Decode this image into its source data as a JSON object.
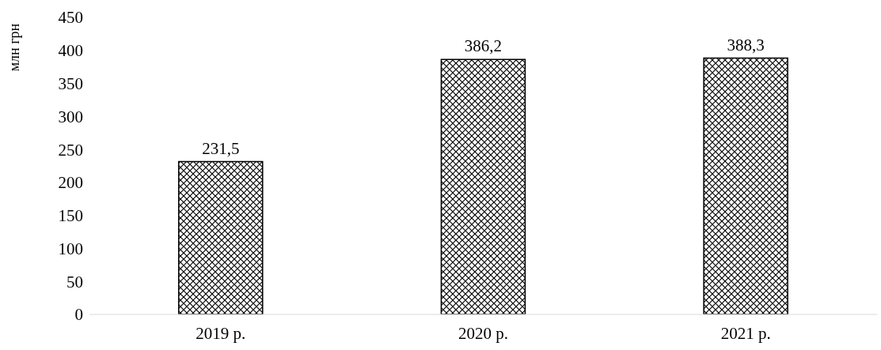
{
  "chart_data": {
    "type": "bar",
    "ylabel": "млн  грн",
    "categories": [
      "2019 р.",
      "2020 р.",
      "2021 р."
    ],
    "values": [
      231.5,
      386.2,
      388.3
    ],
    "value_labels": [
      "231,5",
      "386,2",
      "388,3"
    ],
    "color": "#000000",
    "ylim": [
      0,
      450
    ],
    "yticks": [
      0,
      50,
      100,
      150,
      200,
      250,
      300,
      350,
      400,
      450
    ],
    "grid": false,
    "legend": false
  }
}
